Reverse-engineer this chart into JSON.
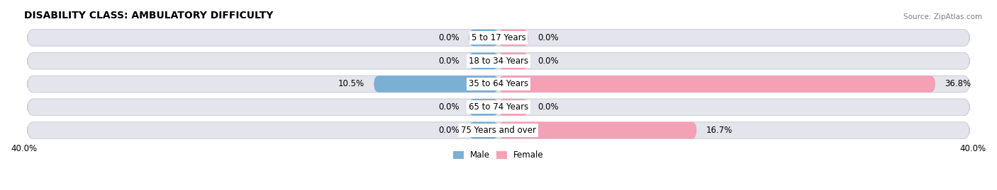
{
  "title": "DISABILITY CLASS: AMBULATORY DIFFICULTY",
  "source": "Source: ZipAtlas.com",
  "categories": [
    "5 to 17 Years",
    "18 to 34 Years",
    "35 to 64 Years",
    "65 to 74 Years",
    "75 Years and over"
  ],
  "male_values": [
    0.0,
    0.0,
    10.5,
    0.0,
    0.0
  ],
  "female_values": [
    0.0,
    0.0,
    36.8,
    0.0,
    16.7
  ],
  "male_color": "#7bafd4",
  "female_color": "#f4a0b5",
  "bar_bg_color": "#e4e4ec",
  "bar_bg_border_color": "#d0d0dc",
  "axis_max": 40.0,
  "stub_size": 2.5,
  "bar_height": 0.72,
  "fig_bg_color": "#ffffff",
  "title_fontsize": 10,
  "label_fontsize": 8.5,
  "tick_fontsize": 8.5,
  "category_fontsize": 8.5
}
